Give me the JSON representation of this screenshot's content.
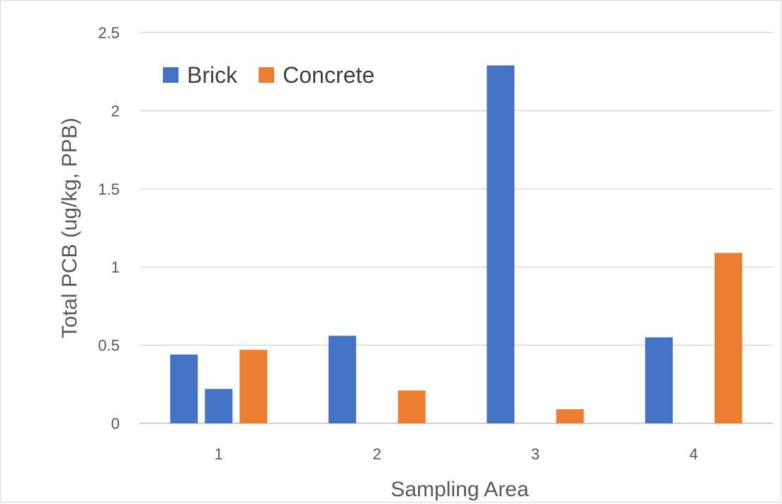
{
  "chart_data": {
    "type": "bar",
    "xlabel": "Sampling Area",
    "ylabel": "Total PCB (ug/kg,  PPB)",
    "ylim": [
      0,
      2.5
    ],
    "y_ticks": [
      "0",
      "0.5",
      "1",
      "1.5",
      "2",
      "2.5"
    ],
    "grid": true,
    "legend_position": "top-left",
    "legend": [
      {
        "name": "Brick",
        "color": "#4472c4"
      },
      {
        "name": "Concrete",
        "color": "#ed7d31"
      }
    ],
    "groups": [
      {
        "label": "1",
        "bars": [
          {
            "series": "Brick",
            "value": 0.44
          },
          {
            "series": "Brick",
            "value": 0.22
          },
          {
            "series": "Concrete",
            "value": 0.47
          }
        ]
      },
      {
        "label": "2",
        "bars": [
          {
            "series": "Brick",
            "value": 0.56
          },
          {
            "series": "Concrete",
            "value": 0.21
          }
        ]
      },
      {
        "label": "3",
        "bars": [
          {
            "series": "Brick",
            "value": 2.29
          },
          {
            "series": "Concrete",
            "value": 0.09
          }
        ]
      },
      {
        "label": "4",
        "bars": [
          {
            "series": "Brick",
            "value": 0.55
          },
          {
            "series": "Concrete",
            "value": 1.09
          }
        ]
      }
    ]
  }
}
